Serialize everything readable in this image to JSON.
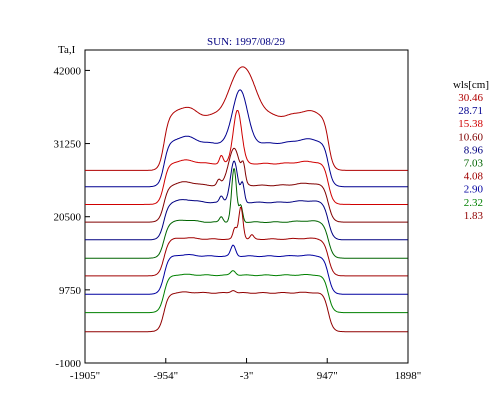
{
  "chart_data": {
    "type": "line",
    "title": "SUN: 1997/08/29",
    "ylabel": "Ta,I",
    "xlim": [
      -1905,
      1898
    ],
    "ylim": [
      -1000,
      45000
    ],
    "grid": false,
    "legend_placement": "right",
    "legend_title": "wls[cm]",
    "x_ticks": [
      {
        "value": -1905,
        "label": "-1905\""
      },
      {
        "value": -954,
        "label": "-954\""
      },
      {
        "value": -3,
        "label": "-3\""
      },
      {
        "value": 947,
        "label": "947\""
      },
      {
        "value": 1898,
        "label": "1898\""
      }
    ],
    "y_ticks": [
      {
        "value": 42000,
        "label": "42000"
      },
      {
        "value": 31250,
        "label": "31250"
      },
      {
        "value": 20500,
        "label": "20500"
      },
      {
        "value": 9750,
        "label": "9750"
      },
      {
        "value": -1000,
        "label": "-1000"
      }
    ],
    "series": [
      {
        "name": "30.46",
        "color": "#b00000",
        "baseline": 27300,
        "plateau": 35200,
        "peak": 42600,
        "peak_x": -50,
        "peak_width": 200,
        "bumps": [],
        "left_shoulder": 1400
      },
      {
        "name": "28.71",
        "color": "#000090",
        "baseline": 24900,
        "plateau": 31300,
        "peak": 39200,
        "peak_x": -80,
        "peak_width": 120,
        "bumps": [],
        "left_shoulder": 1000
      },
      {
        "name": "15.38",
        "color": "#d00000",
        "baseline": 22300,
        "plateau": 28300,
        "peak": 36200,
        "peak_x": -110,
        "peak_width": 70,
        "bumps": [
          {
            "x": -300,
            "h": 1200
          }
        ],
        "left_shoulder": 500
      },
      {
        "name": "10.60",
        "color": "#800000",
        "baseline": 19700,
        "plateau": 25100,
        "peak": 30600,
        "peak_x": -150,
        "peak_width": 90,
        "bumps": [
          {
            "x": -40,
            "h": 2200
          },
          {
            "x": -330,
            "h": 800
          }
        ],
        "left_shoulder": 500
      },
      {
        "name": "8.96",
        "color": "#000080",
        "baseline": 17100,
        "plateau": 22600,
        "peak": 28700,
        "peak_x": -150,
        "peak_width": 60,
        "bumps": [
          {
            "x": -50,
            "h": 2600
          },
          {
            "x": -300,
            "h": 900
          }
        ],
        "left_shoulder": 400
      },
      {
        "name": "7.03",
        "color": "#006400",
        "baseline": 14400,
        "plateau": 19700,
        "peak": 27600,
        "peak_x": -150,
        "peak_width": 40,
        "bumps": [
          {
            "x": -70,
            "h": 2400
          },
          {
            "x": -300,
            "h": 800
          }
        ],
        "left_shoulder": 300
      },
      {
        "name": "4.08",
        "color": "#a00000",
        "baseline": 11800,
        "plateau": 17200,
        "peak": 22000,
        "peak_x": -70,
        "peak_width": 35,
        "bumps": [
          {
            "x": -140,
            "h": 1600
          },
          {
            "x": 60,
            "h": 600
          }
        ],
        "left_shoulder": 200
      },
      {
        "name": "2.90",
        "color": "#0000a0",
        "baseline": 9100,
        "plateau": 14700,
        "peak": 16300,
        "peak_x": -160,
        "peak_width": 40,
        "bumps": [],
        "left_shoulder": 200
      },
      {
        "name": "2.32",
        "color": "#008000",
        "baseline": 6400,
        "plateau": 11900,
        "peak": 12600,
        "peak_x": -160,
        "peak_width": 40,
        "bumps": [],
        "left_shoulder": 100
      },
      {
        "name": "1.83",
        "color": "#900000",
        "baseline": 3600,
        "plateau": 9300,
        "peak": 9700,
        "peak_x": -160,
        "peak_width": 40,
        "bumps": [],
        "left_shoulder": 100
      }
    ]
  }
}
